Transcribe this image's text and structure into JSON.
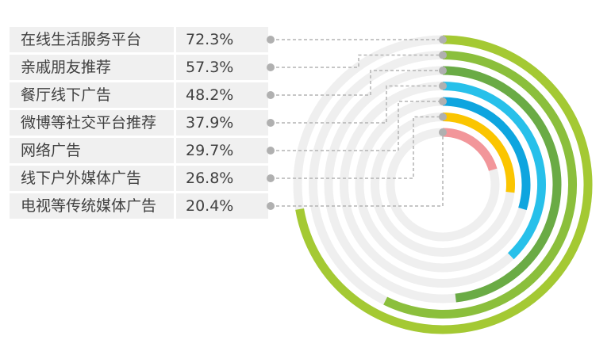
{
  "chart_data": {
    "type": "radial-bar",
    "categories": [
      "在线生活服务平台",
      "亲戚朋友推荐",
      "餐厅线下广告",
      "微博等社交平台推荐",
      "网络广告",
      "线下户外媒体广告",
      "电视等传统媒体广告"
    ],
    "values": [
      72.3,
      57.3,
      48.2,
      37.9,
      29.7,
      26.8,
      20.4
    ],
    "value_labels": [
      "72.3%",
      "57.3%",
      "48.2%",
      "37.9%",
      "29.7%",
      "26.8%",
      "20.4%"
    ],
    "unit": "%",
    "max": 100,
    "colors": [
      "#a4c933",
      "#8bbf3c",
      "#6aab45",
      "#27c0ea",
      "#0ea5df",
      "#fbc500",
      "#f2969a"
    ],
    "track_color": "#efefef",
    "leader_color": "#b4b4b4"
  }
}
